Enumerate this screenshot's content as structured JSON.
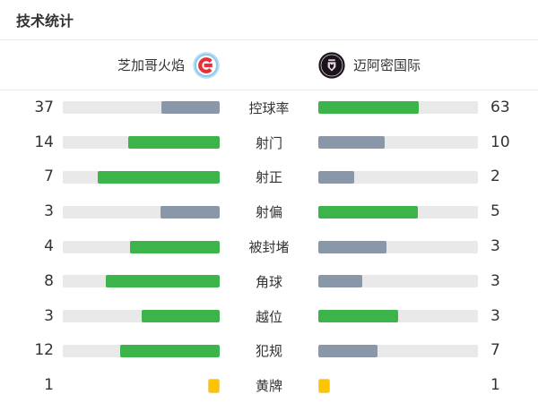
{
  "title": "技术统计",
  "teams": {
    "home": {
      "name": "芝加哥火焰",
      "logo": "chicago-fire-crest"
    },
    "away": {
      "name": "迈阿密国际",
      "logo": "inter-miami-crest"
    }
  },
  "colors": {
    "bar_high": "#3cb44a",
    "bar_low": "#8997a8",
    "bar_track": "#e9e9e9",
    "yellow_card_fill": "#fdc400",
    "yellow_card_border": "#edd27a"
  },
  "stats": [
    {
      "label": "控球率",
      "home": 37,
      "away": 63,
      "display": "bar"
    },
    {
      "label": "射门",
      "home": 14,
      "away": 10,
      "display": "bar"
    },
    {
      "label": "射正",
      "home": 7,
      "away": 2,
      "display": "bar"
    },
    {
      "label": "射偏",
      "home": 3,
      "away": 5,
      "display": "bar"
    },
    {
      "label": "被封堵",
      "home": 4,
      "away": 3,
      "display": "bar"
    },
    {
      "label": "角球",
      "home": 8,
      "away": 3,
      "display": "bar"
    },
    {
      "label": "越位",
      "home": 3,
      "away": 3,
      "display": "bar"
    },
    {
      "label": "犯规",
      "home": 12,
      "away": 7,
      "display": "bar"
    },
    {
      "label": "黄牌",
      "home": 1,
      "away": 1,
      "display": "card"
    }
  ],
  "chart_data": {
    "type": "bar",
    "orientation": "horizontal-paired",
    "title": "技术统计",
    "categories": [
      "控球率",
      "射门",
      "射正",
      "射偏",
      "被封堵",
      "角球",
      "越位",
      "犯规",
      "黄牌"
    ],
    "series": [
      {
        "name": "芝加哥火焰",
        "values": [
          37,
          14,
          7,
          3,
          4,
          8,
          3,
          12,
          1
        ]
      },
      {
        "name": "迈阿密国际",
        "values": [
          63,
          10,
          2,
          5,
          3,
          3,
          3,
          7,
          1
        ]
      }
    ],
    "legend_position": "top",
    "grid": false,
    "notes": "Each bar's fill length = value / (home+away) of that row; green fill = value >= opponent, blue-gray fill = lower value; home bars grow right-to-left, away bars left-to-right; 黄牌 row rendered as yellow card icons instead of bars."
  }
}
